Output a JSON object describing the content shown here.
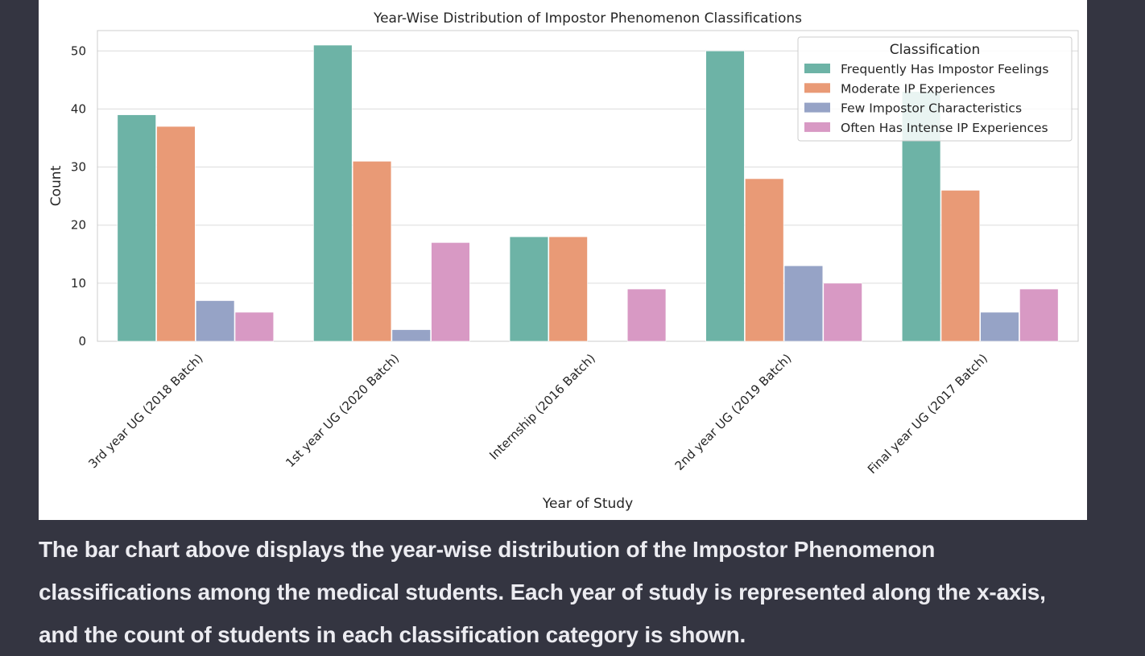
{
  "chart_data": {
    "type": "bar",
    "title": "Year-Wise Distribution of Impostor Phenomenon Classifications",
    "xlabel": "Year of Study",
    "ylabel": "Count",
    "ylim": [
      0,
      53.5
    ],
    "yticks": [
      0,
      10,
      20,
      30,
      40,
      50
    ],
    "grid": true,
    "legend_title": "Classification",
    "legend_position": "top-right",
    "categories": [
      "3rd year UG (2018 Batch)",
      "1st year UG (2020 Batch)",
      "Internship (2016 Batch)",
      "2nd year UG (2019 Batch)",
      "Final year UG (2017 Batch)"
    ],
    "series": [
      {
        "name": "Frequently Has Impostor Feelings",
        "color": "#6db3a6",
        "values": [
          39,
          51,
          18,
          50,
          43
        ]
      },
      {
        "name": "Moderate IP Experiences",
        "color": "#e99a76",
        "values": [
          37,
          31,
          18,
          28,
          26
        ]
      },
      {
        "name": "Few Impostor Characteristics",
        "color": "#96a3c6",
        "values": [
          7,
          2,
          0,
          13,
          5
        ]
      },
      {
        "name": "Often Has Intense IP Experiences",
        "color": "#d899c4",
        "values": [
          5,
          17,
          9,
          10,
          9
        ]
      }
    ]
  },
  "caption": {
    "line1": "The bar chart above displays the year-wise distribution of the Impostor Phenomenon",
    "line2": "classifications among the medical students. Each year of study is represented along the x-axis,",
    "line3": "and the count of students in each classification category is shown."
  }
}
